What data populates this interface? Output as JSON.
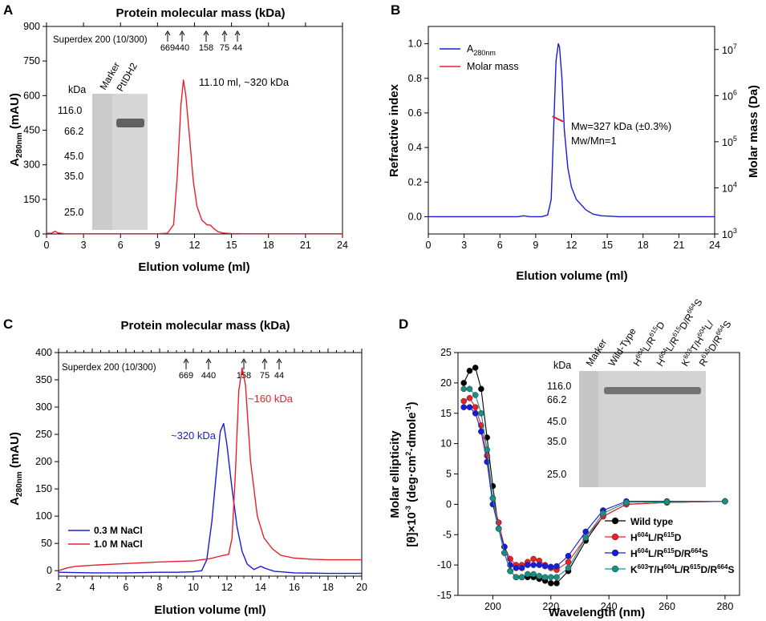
{
  "figure": {
    "A": {
      "label": "A",
      "title": "Protein molecular mass (kDa)",
      "column_text": "Superdex 200 (10/300)",
      "markers": [
        "669",
        "440",
        "158",
        "75",
        "44"
      ],
      "peak_annotation": "11.10 ml, ~320 kDa",
      "gel": {
        "header_unit": "kDa",
        "lanes": [
          "Marker",
          "PtIDH2"
        ],
        "ladder": [
          "116.0",
          "66.2",
          "45.0",
          "35.0",
          "25.0"
        ]
      }
    },
    "B": {
      "label": "B",
      "annotation_mw": "Mw=327 kDa (±0.3%)",
      "annotation_ratio": "Mw/Mn=1",
      "y2_ticks": [
        "10",
        "10",
        "10",
        "10",
        "10"
      ],
      "y2_exps": [
        "7",
        "6",
        "5",
        "4",
        "3"
      ]
    },
    "C": {
      "label": "C",
      "title": "Protein molecular mass (kDa)",
      "column_text": "Superdex 200 (10/300)",
      "markers": [
        "669",
        "440",
        "158",
        "75",
        "44"
      ],
      "ann_blue": "~320 kDa",
      "ann_red": "~160 kDa"
    },
    "D": {
      "label": "D",
      "gel": {
        "header_unit": "kDa",
        "ladder": [
          "116.0",
          "66.2",
          "45.0",
          "35.0",
          "25.0"
        ]
      }
    }
  },
  "chart_data": [
    {
      "panel": "A",
      "type": "line",
      "title": "Protein molecular mass (kDa)",
      "xlabel": "Elution volume (ml)",
      "ylabel": "A280nm (mAU)",
      "xlim": [
        0,
        24
      ],
      "ylim": [
        0,
        900
      ],
      "xticks": [
        "0",
        "3",
        "6",
        "9",
        "12",
        "15",
        "18",
        "21",
        "24"
      ],
      "yticks": [
        "0",
        "150",
        "300",
        "450",
        "600",
        "750",
        "900"
      ],
      "series": [
        {
          "name": "A280",
          "color": "#e8202a",
          "x": [
            0,
            0.4,
            0.7,
            0.9,
            1.5,
            3,
            6,
            9,
            9.8,
            10.3,
            10.6,
            10.9,
            11.1,
            11.3,
            11.6,
            11.9,
            12.2,
            12.6,
            13.0,
            13.3,
            13.6,
            13.9,
            14.3,
            15,
            16,
            18,
            21,
            24
          ],
          "y": [
            3,
            3,
            12,
            5,
            1,
            1,
            1,
            1,
            3,
            40,
            250,
            560,
            668,
            600,
            420,
            230,
            120,
            60,
            40,
            38,
            22,
            10,
            4,
            2,
            1,
            1,
            1,
            1
          ]
        }
      ]
    },
    {
      "panel": "B",
      "type": "line",
      "xlabel": "Elution volume (ml)",
      "ylabel": "Refractive index",
      "y2label": "Molar mass (Da)",
      "xlim": [
        0,
        24
      ],
      "ylim": [
        -0.1,
        1.1
      ],
      "y2lim_log10": [
        3,
        7.5
      ],
      "xticks": [
        "0",
        "3",
        "6",
        "9",
        "12",
        "15",
        "18",
        "21",
        "24"
      ],
      "yticks": [
        "0.0",
        "0.2",
        "0.4",
        "0.6",
        "0.8",
        "1.0"
      ],
      "legend": [
        "A280nm",
        "Molar mass"
      ],
      "series": [
        {
          "name": "A280nm",
          "color": "#1a1adb",
          "x": [
            0,
            5,
            7.5,
            8,
            8.5,
            9.5,
            10,
            10.3,
            10.5,
            10.7,
            10.9,
            11.0,
            11.2,
            11.4,
            11.7,
            12.0,
            12.4,
            12.8,
            13.2,
            13.8,
            14.5,
            16,
            24
          ],
          "y": [
            0,
            0,
            0,
            0.005,
            0,
            0,
            0.01,
            0.1,
            0.5,
            0.9,
            1.0,
            0.98,
            0.8,
            0.5,
            0.28,
            0.17,
            0.1,
            0.07,
            0.04,
            0.015,
            0.005,
            0,
            0
          ]
        },
        {
          "name": "Molar mass",
          "color": "#e8202a",
          "x": [
            10.4,
            11.3
          ],
          "y": [
            0.58,
            0.55
          ]
        }
      ]
    },
    {
      "panel": "C",
      "type": "line",
      "title": "Protein molecular mass (kDa)",
      "xlabel": "Elution volume (ml)",
      "ylabel": "A280nm (mAU)",
      "xlim": [
        2,
        20
      ],
      "ylim": [
        -10,
        400
      ],
      "xticks": [
        "2",
        "4",
        "6",
        "8",
        "10",
        "12",
        "14",
        "16",
        "18",
        "20"
      ],
      "yticks": [
        "0",
        "50",
        "100",
        "150",
        "200",
        "250",
        "300",
        "350",
        "400"
      ],
      "legend": [
        "0.3 M NaCl",
        "1.0 M NaCl"
      ],
      "series": [
        {
          "name": "0.3 M NaCl",
          "color": "#1a1adb",
          "x": [
            2,
            4,
            6,
            8,
            9,
            10,
            10.5,
            10.8,
            11.1,
            11.4,
            11.6,
            11.8,
            12.0,
            12.3,
            12.6,
            12.9,
            13.2,
            13.6,
            14.0,
            14.3,
            14.8,
            16,
            18,
            20
          ],
          "y": [
            -3,
            -4,
            -4,
            -3,
            -3,
            -2,
            0,
            20,
            90,
            190,
            255,
            270,
            230,
            150,
            80,
            35,
            12,
            2,
            8,
            4,
            -1,
            -4,
            -5,
            -5
          ]
        },
        {
          "name": "1.0 M NaCl",
          "color": "#e8202a",
          "x": [
            2,
            2.5,
            3,
            4,
            6,
            8,
            10,
            11,
            11.5,
            11.8,
            12.1,
            12.3,
            12.5,
            12.7,
            12.9,
            13.1,
            13.4,
            13.8,
            14.2,
            14.7,
            15.2,
            16,
            17,
            18,
            20
          ],
          "y": [
            0,
            5,
            8,
            10,
            13,
            16,
            18,
            22,
            26,
            28,
            30,
            60,
            180,
            330,
            372,
            340,
            200,
            100,
            60,
            40,
            28,
            23,
            21,
            20,
            20
          ]
        }
      ]
    },
    {
      "panel": "D",
      "type": "scatter",
      "xlabel": "Wavelength (nm)",
      "ylabel": "[θ]×10-3 (deg·cm2·dmole-1)",
      "ylabel_line1": "Molar ellipticity",
      "xlim": [
        188,
        285
      ],
      "ylim": [
        -15,
        25
      ],
      "xticks": [
        "200",
        "220",
        "240",
        "260",
        "280"
      ],
      "yticks": [
        "-15",
        "-10",
        "-5",
        "0",
        "5",
        "10",
        "15",
        "20",
        "25"
      ],
      "legend": [
        "Wild type",
        "H604L/R615D",
        "H604L/R615D/R664S",
        "K603T/H604L/R615D/R664S"
      ],
      "gel_lanes": [
        "Marker",
        "Wild-Type",
        "H604L/R615D",
        "H604L/R615D/R664S",
        "K603T/H604L/R615D/R664S"
      ],
      "series": [
        {
          "name": "Wild type",
          "color": "#000000",
          "x": [
            190,
            192,
            194,
            196,
            198,
            200,
            202,
            204,
            206,
            208,
            210,
            212,
            214,
            216,
            218,
            220,
            222,
            226,
            232,
            238,
            246,
            260,
            280
          ],
          "y": [
            20,
            22,
            22.5,
            19,
            11,
            3,
            -4,
            -8,
            -11,
            -12,
            -12,
            -12,
            -12,
            -12.3,
            -12.6,
            -13,
            -13,
            -11,
            -6,
            -2,
            0,
            0.3,
            0.5
          ]
        },
        {
          "name": "H604L/R615D",
          "color": "#e8202a",
          "x": [
            190,
            192,
            194,
            196,
            198,
            200,
            202,
            204,
            206,
            208,
            210,
            212,
            214,
            216,
            218,
            220,
            222,
            226,
            232,
            238,
            246,
            260,
            280
          ],
          "y": [
            17,
            17.5,
            16,
            13,
            8,
            1,
            -3,
            -7,
            -9,
            -10,
            -10,
            -9.5,
            -9,
            -9.3,
            -10,
            -10.5,
            -10.8,
            -9.5,
            -5.5,
            -2,
            0,
            0.3,
            0.5
          ]
        },
        {
          "name": "H604L/R615D/R664S",
          "color": "#1a1adb",
          "x": [
            190,
            192,
            194,
            196,
            198,
            200,
            202,
            204,
            206,
            208,
            210,
            212,
            214,
            216,
            218,
            220,
            222,
            226,
            232,
            238,
            246,
            260,
            280
          ],
          "y": [
            16,
            16,
            15,
            12,
            7,
            0,
            -4,
            -7,
            -10,
            -10.5,
            -10.5,
            -10,
            -10,
            -10,
            -10.2,
            -10.3,
            -10.2,
            -8.5,
            -4.5,
            -1,
            0.5,
            0.5,
            0.5
          ]
        },
        {
          "name": "K603T/H604L/R615D/R664S",
          "color": "#1a8f86",
          "x": [
            190,
            192,
            194,
            196,
            198,
            200,
            202,
            204,
            206,
            208,
            210,
            212,
            214,
            216,
            218,
            220,
            222,
            226,
            232,
            238,
            246,
            260,
            280
          ],
          "y": [
            19,
            19,
            18,
            15,
            9,
            1,
            -4,
            -8,
            -11,
            -12,
            -12,
            -11.5,
            -11.5,
            -11.8,
            -12,
            -12,
            -12,
            -10.5,
            -5.5,
            -1.5,
            0.3,
            0.4,
            0.5
          ]
        }
      ]
    }
  ]
}
